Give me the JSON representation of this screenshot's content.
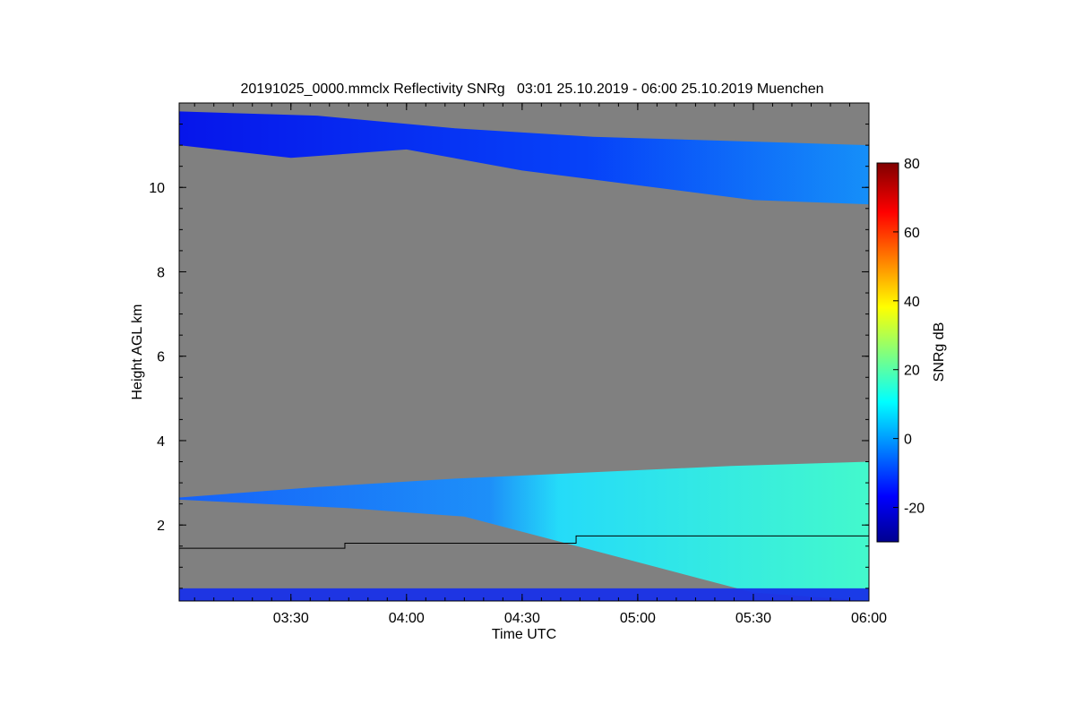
{
  "chart_data": {
    "type": "heatmap",
    "title": "20191025_0000.mmclx Reflectivity SNRg   03:01 25.10.2019 - 06:00 25.10.2019 Muenchen",
    "xlabel": "Time UTC",
    "ylabel": "Height AGL km",
    "x_range_minutes_utc": [
      181,
      360
    ],
    "y_range_km": [
      0.2,
      12.0
    ],
    "x_ticks": [
      {
        "min": 210,
        "label": "03:30"
      },
      {
        "min": 240,
        "label": "04:00"
      },
      {
        "min": 270,
        "label": "04:30"
      },
      {
        "min": 300,
        "label": "05:00"
      },
      {
        "min": 330,
        "label": "05:30"
      },
      {
        "min": 360,
        "label": "06:00"
      }
    ],
    "y_ticks": [
      2,
      4,
      6,
      8,
      10
    ],
    "background_color": "#808080",
    "colorbar": {
      "label": "SNRg dB",
      "range": [
        -30,
        80
      ],
      "ticks": [
        -20,
        0,
        20,
        40,
        60,
        80
      ],
      "colormap": "jet"
    },
    "layers": [
      {
        "name": "upper cirrus",
        "time_min": [
          181,
          360
        ],
        "base_km": [
          11.0,
          10.7,
          10.9,
          10.4,
          9.7,
          9.6
        ],
        "top_km": [
          11.8,
          11.7,
          11.4,
          11.2,
          11.1,
          11.0
        ],
        "base_time": [
          181,
          210,
          240,
          270,
          330,
          360
        ],
        "snr_db_typ": -15
      },
      {
        "name": "lower stratiform",
        "time_min": [
          181,
          360
        ],
        "base_km": [
          2.6,
          2.4,
          2.2,
          1.6,
          0.4,
          0.2
        ],
        "top_km": [
          2.65,
          2.9,
          3.1,
          3.25,
          3.4,
          3.5
        ],
        "base_time": [
          181,
          225,
          255,
          280,
          330,
          360
        ],
        "snr_db_typ": 10
      },
      {
        "name": "ground clutter",
        "time_min": [
          181,
          360
        ],
        "base_km": [
          0.2
        ],
        "top_km": [
          0.5
        ],
        "snr_db_typ": -15
      }
    ],
    "boundary_line_km": {
      "name": "boundary line",
      "steps": [
        {
          "from_min": 181,
          "to_min": 224,
          "km": 1.45
        },
        {
          "from_min": 224,
          "to_min": 284,
          "km": 1.57
        },
        {
          "from_min": 284,
          "to_min": 360,
          "km": 1.74
        }
      ]
    }
  }
}
